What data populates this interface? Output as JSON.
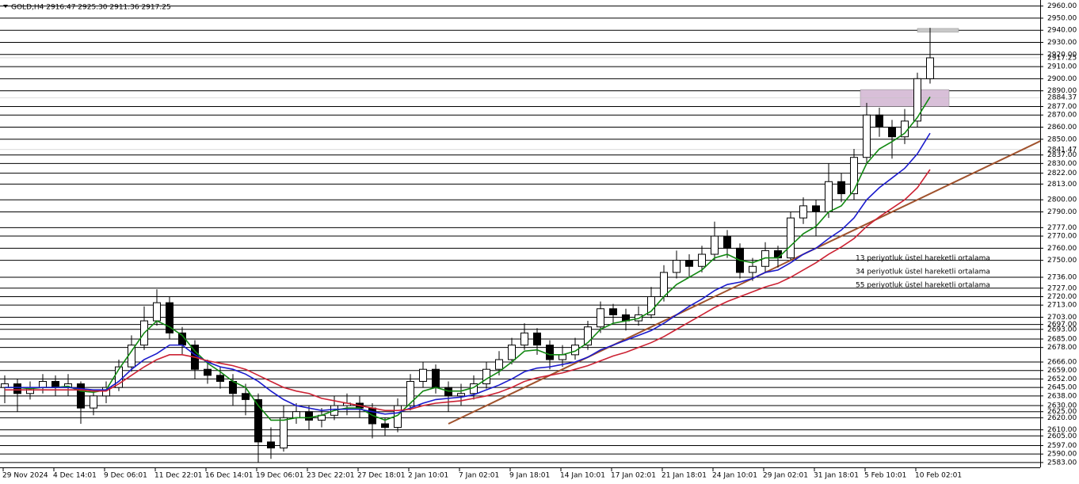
{
  "chart_data": {
    "type": "candlestick",
    "title": "GOLD,H4  2916.47 2925.30 2911.36 2917.25",
    "categories": [
      "29 Nov 2024",
      null,
      null,
      null,
      "4 Dec 14:01",
      null,
      null,
      null,
      "9 Dec 06:01",
      null,
      null,
      null,
      "11 Dec 22:01",
      null,
      null,
      null,
      "16 Dec 14:01",
      null,
      null,
      null,
      "19 Dec 06:01",
      null,
      null,
      null,
      "23 Dec 22:01",
      null,
      null,
      null,
      "27 Dec 18:01",
      null,
      null,
      null,
      "2 Jan 10:01",
      null,
      null,
      null,
      "7 Jan 02:01",
      null,
      null,
      null,
      "9 Jan 18:01",
      null,
      null,
      null,
      "14 Jan 10:01",
      null,
      null,
      null,
      "17 Jan 02:01",
      null,
      null,
      null,
      "21 Jan 18:01",
      null,
      null,
      null,
      "24 Jan 10:01",
      null,
      null,
      null,
      "29 Jan 02:01",
      null,
      null,
      null,
      "31 Jan 18:01",
      null,
      null,
      null,
      "5 Feb 10:01",
      null,
      null,
      null,
      "10 Feb 02:01",
      null
    ],
    "open": [
      2645,
      2648,
      2640,
      2645,
      2650,
      2645,
      2648,
      2628,
      2638,
      2645,
      2662,
      2680,
      2700,
      2715,
      2690,
      2680,
      2660,
      2655,
      2650,
      2640,
      2635,
      2600,
      2595,
      2620,
      2625,
      2618,
      2622,
      2630,
      2632,
      2628,
      2615,
      2612,
      2630,
      2650,
      2660,
      2645,
      2638,
      2640,
      2648,
      2660,
      2668,
      2680,
      2690,
      2680,
      2668,
      2672,
      2680,
      2695,
      2710,
      2705,
      2700,
      2705,
      2720,
      2740,
      2750,
      2745,
      2755,
      2770,
      2760,
      2740,
      2745,
      2758,
      2752,
      2785,
      2795,
      2790,
      2815,
      2805,
      2835,
      2870,
      2860,
      2852,
      2865,
      2900
    ],
    "high": [
      2655,
      2652,
      2650,
      2656,
      2655,
      2656,
      2650,
      2642,
      2650,
      2668,
      2688,
      2712,
      2726,
      2720,
      2695,
      2684,
      2668,
      2662,
      2656,
      2648,
      2640,
      2612,
      2630,
      2632,
      2630,
      2628,
      2638,
      2640,
      2638,
      2632,
      2620,
      2636,
      2656,
      2666,
      2664,
      2650,
      2648,
      2655,
      2666,
      2675,
      2686,
      2698,
      2694,
      2684,
      2680,
      2686,
      2700,
      2716,
      2714,
      2710,
      2712,
      2728,
      2746,
      2758,
      2755,
      2762,
      2782,
      2775,
      2764,
      2752,
      2765,
      2762,
      2790,
      2802,
      2800,
      2830,
      2822,
      2842,
      2880,
      2876,
      2866,
      2875,
      2905,
      2942
    ],
    "low": [
      2632,
      2625,
      2635,
      2640,
      2638,
      2638,
      2615,
      2622,
      2632,
      2642,
      2658,
      2676,
      2696,
      2685,
      2672,
      2652,
      2648,
      2644,
      2630,
      2622,
      2583,
      2586,
      2592,
      2615,
      2610,
      2612,
      2618,
      2622,
      2620,
      2603,
      2605,
      2608,
      2626,
      2645,
      2640,
      2625,
      2630,
      2635,
      2644,
      2655,
      2664,
      2676,
      2672,
      2660,
      2662,
      2668,
      2676,
      2690,
      2698,
      2692,
      2696,
      2702,
      2716,
      2735,
      2736,
      2740,
      2750,
      2752,
      2735,
      2733,
      2740,
      2744,
      2750,
      2780,
      2770,
      2785,
      2798,
      2800,
      2830,
      2852,
      2834,
      2846,
      2860,
      2896
    ],
    "close": [
      2648,
      2640,
      2645,
      2650,
      2645,
      2648,
      2628,
      2638,
      2645,
      2662,
      2680,
      2700,
      2715,
      2690,
      2680,
      2660,
      2655,
      2650,
      2640,
      2635,
      2600,
      2595,
      2620,
      2625,
      2618,
      2622,
      2630,
      2632,
      2628,
      2615,
      2612,
      2630,
      2650,
      2660,
      2645,
      2638,
      2640,
      2648,
      2660,
      2668,
      2680,
      2690,
      2680,
      2668,
      2672,
      2680,
      2695,
      2710,
      2705,
      2700,
      2705,
      2720,
      2740,
      2750,
      2745,
      2755,
      2770,
      2760,
      2740,
      2745,
      2758,
      2752,
      2785,
      2795,
      2790,
      2815,
      2805,
      2835,
      2870,
      2860,
      2852,
      2865,
      2900,
      2917.25
    ],
    "up_color": "#ffffff",
    "down_color": "#000000",
    "series": [
      {
        "name": "13 periyotluk üstel hareketli ortalama",
        "color": "#118811",
        "values": [
          2645,
          2645,
          2644,
          2645,
          2645,
          2646,
          2642,
          2641,
          2643,
          2660,
          2675,
          2690,
          2700,
          2695,
          2688,
          2675,
          2665,
          2658,
          2650,
          2645,
          2630,
          2618,
          2618,
          2620,
          2620,
          2622,
          2626,
          2628,
          2628,
          2622,
          2618,
          2622,
          2632,
          2642,
          2645,
          2642,
          2642,
          2645,
          2652,
          2658,
          2666,
          2675,
          2676,
          2672,
          2672,
          2675,
          2682,
          2693,
          2698,
          2700,
          2702,
          2708,
          2720,
          2730,
          2736,
          2742,
          2752,
          2755,
          2750,
          2748,
          2752,
          2752,
          2762,
          2772,
          2778,
          2790,
          2795,
          2808,
          2830,
          2842,
          2848,
          2855,
          2868,
          2885
        ]
      },
      {
        "name": "34 periyotluk üstel hareketli ortalama",
        "color": "#1a1acc",
        "values": [
          2645,
          2645,
          2645,
          2645,
          2645,
          2645,
          2644,
          2643,
          2643,
          2650,
          2660,
          2668,
          2673,
          2680,
          2680,
          2672,
          2666,
          2662,
          2660,
          2656,
          2650,
          2642,
          2635,
          2630,
          2628,
          2626,
          2627,
          2627,
          2627,
          2625,
          2623,
          2624,
          2628,
          2632,
          2635,
          2636,
          2637,
          2639,
          2643,
          2647,
          2652,
          2658,
          2661,
          2662,
          2664,
          2666,
          2670,
          2676,
          2680,
          2684,
          2688,
          2692,
          2698,
          2705,
          2712,
          2718,
          2725,
          2730,
          2732,
          2735,
          2740,
          2742,
          2748,
          2755,
          2760,
          2768,
          2775,
          2785,
          2800,
          2810,
          2818,
          2826,
          2838,
          2855
        ]
      },
      {
        "name": "55 periyotluk üstel hareketli ortalama",
        "color": "#cc2233",
        "values": [
          2643,
          2643,
          2643,
          2643,
          2643,
          2643,
          2643,
          2642,
          2642,
          2648,
          2655,
          2662,
          2668,
          2672,
          2672,
          2670,
          2667,
          2665,
          2663,
          2660,
          2655,
          2650,
          2645,
          2642,
          2640,
          2636,
          2634,
          2632,
          2630,
          2628,
          2626,
          2626,
          2627,
          2630,
          2632,
          2633,
          2634,
          2636,
          2638,
          2641,
          2645,
          2650,
          2653,
          2655,
          2657,
          2660,
          2663,
          2667,
          2671,
          2674,
          2678,
          2682,
          2687,
          2693,
          2699,
          2705,
          2711,
          2716,
          2720,
          2724,
          2728,
          2731,
          2736,
          2742,
          2748,
          2755,
          2761,
          2768,
          2778,
          2786,
          2793,
          2800,
          2810,
          2825
        ]
      }
    ],
    "trendline": {
      "color": "#a0522d",
      "points": [
        [
          35,
          2615
        ],
        [
          82,
          2850
        ]
      ]
    },
    "zones": [
      {
        "color": "#d8bfd8",
        "x": [
          67.5,
          74.5
        ],
        "y": [
          2877,
          2891
        ]
      },
      {
        "color": "#c8c8c8",
        "x": [
          72,
          75.25
        ],
        "y": [
          2938.5,
          2941.5
        ]
      }
    ],
    "price_labels": [
      {
        "value": 2917.25,
        "label": "2917.25"
      },
      {
        "value": 2884.37,
        "label": "2884.37"
      },
      {
        "value": 2841.47,
        "label": "2841.47"
      }
    ],
    "ylim": [
      2579,
      2965
    ],
    "yticks": [
      {
        "value": 2960,
        "label": "2960.00"
      },
      {
        "value": 2950,
        "label": "2950.00"
      },
      {
        "value": 2940,
        "label": "2940.00"
      },
      {
        "value": 2930,
        "label": "2930.00"
      },
      {
        "value": 2920,
        "label": "2920.00"
      },
      {
        "value": 2910,
        "label": "2910.00"
      },
      {
        "value": 2900,
        "label": "2900.00"
      },
      {
        "value": 2890,
        "label": "2890.00"
      },
      {
        "value": 2877,
        "label": "2877.00"
      },
      {
        "value": 2870,
        "label": "2870.00"
      },
      {
        "value": 2860,
        "label": "2860.00"
      },
      {
        "value": 2850,
        "label": "2850.00"
      },
      {
        "value": 2837,
        "label": "2837.00"
      },
      {
        "value": 2830,
        "label": "2830.00"
      },
      {
        "value": 2822,
        "label": "2822.00"
      },
      {
        "value": 2813,
        "label": "2813.00"
      },
      {
        "value": 2800,
        "label": "2800.00"
      },
      {
        "value": 2790,
        "label": "2790.00"
      },
      {
        "value": 2777,
        "label": "2777.00"
      },
      {
        "value": 2770,
        "label": "2770.00"
      },
      {
        "value": 2760,
        "label": "2760.00"
      },
      {
        "value": 2750,
        "label": "2750.00"
      },
      {
        "value": 2736,
        "label": "2736.00"
      },
      {
        "value": 2727,
        "label": "2727.00"
      },
      {
        "value": 2720,
        "label": "2720.00"
      },
      {
        "value": 2713,
        "label": "2713.00"
      },
      {
        "value": 2703,
        "label": "2703.00"
      },
      {
        "value": 2697,
        "label": "2697.00"
      },
      {
        "value": 2693,
        "label": "2693.00"
      },
      {
        "value": 2685,
        "label": "2685.00"
      },
      {
        "value": 2678,
        "label": "2678.00"
      },
      {
        "value": 2666,
        "label": "2666.00"
      },
      {
        "value": 2659,
        "label": "2659.00"
      },
      {
        "value": 2652,
        "label": "2652.00"
      },
      {
        "value": 2645,
        "label": "2645.00"
      },
      {
        "value": 2638,
        "label": "2638.00"
      },
      {
        "value": 2630,
        "label": "2630.00"
      },
      {
        "value": 2625,
        "label": "2625.00"
      },
      {
        "value": 2620,
        "label": "2620.00"
      },
      {
        "value": 2610,
        "label": "2610.00"
      },
      {
        "value": 2605,
        "label": "2605.00"
      },
      {
        "value": 2597,
        "label": "2597.00"
      },
      {
        "value": 2590,
        "label": "2590.00"
      },
      {
        "value": 2583,
        "label": "2583.00"
      }
    ],
    "grid": true,
    "grid_color": "#000000"
  }
}
